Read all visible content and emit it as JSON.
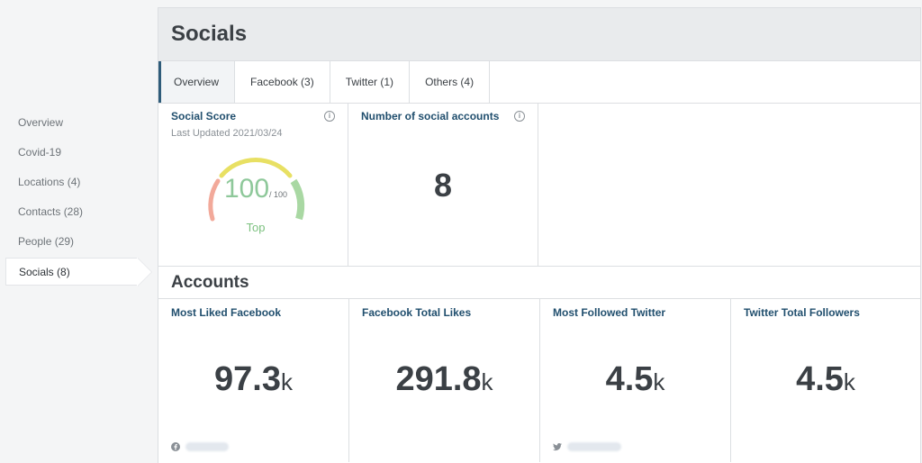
{
  "sidebar": {
    "items": [
      {
        "label": "Overview"
      },
      {
        "label": "Covid-19"
      },
      {
        "label": "Locations (4)"
      },
      {
        "label": "Contacts (28)"
      },
      {
        "label": "People (29)"
      },
      {
        "label": "Socials (8)"
      }
    ],
    "active_index": 5
  },
  "header": {
    "title": "Socials"
  },
  "tabs": [
    {
      "label": "Overview"
    },
    {
      "label": "Facebook (3)"
    },
    {
      "label": "Twitter (1)"
    },
    {
      "label": "Others (4)"
    }
  ],
  "social_score": {
    "title": "Social Score",
    "updated": "Last Updated 2021/03/24",
    "value": "100",
    "max": "/ 100",
    "rating": "Top",
    "info_icon": "info-icon"
  },
  "num_accounts": {
    "title": "Number of social accounts",
    "value": "8",
    "info_icon": "info-icon"
  },
  "accounts": {
    "title": "Accounts",
    "cards": [
      {
        "title": "Most Liked Facebook",
        "value": "97.3",
        "unit": "k",
        "icon": "facebook-icon"
      },
      {
        "title": "Facebook Total Likes",
        "value": "291.8",
        "unit": "k"
      },
      {
        "title": "Most Followed Twitter",
        "value": "4.5",
        "unit": "k",
        "icon": "twitter-icon"
      },
      {
        "title": "Twitter Total Followers",
        "value": "4.5",
        "unit": "k"
      }
    ]
  },
  "colors": {
    "accent": "#214f6e",
    "gauge_red": "#f2a99a",
    "gauge_yellow": "#e8e063",
    "gauge_green": "#a9d8a3"
  }
}
